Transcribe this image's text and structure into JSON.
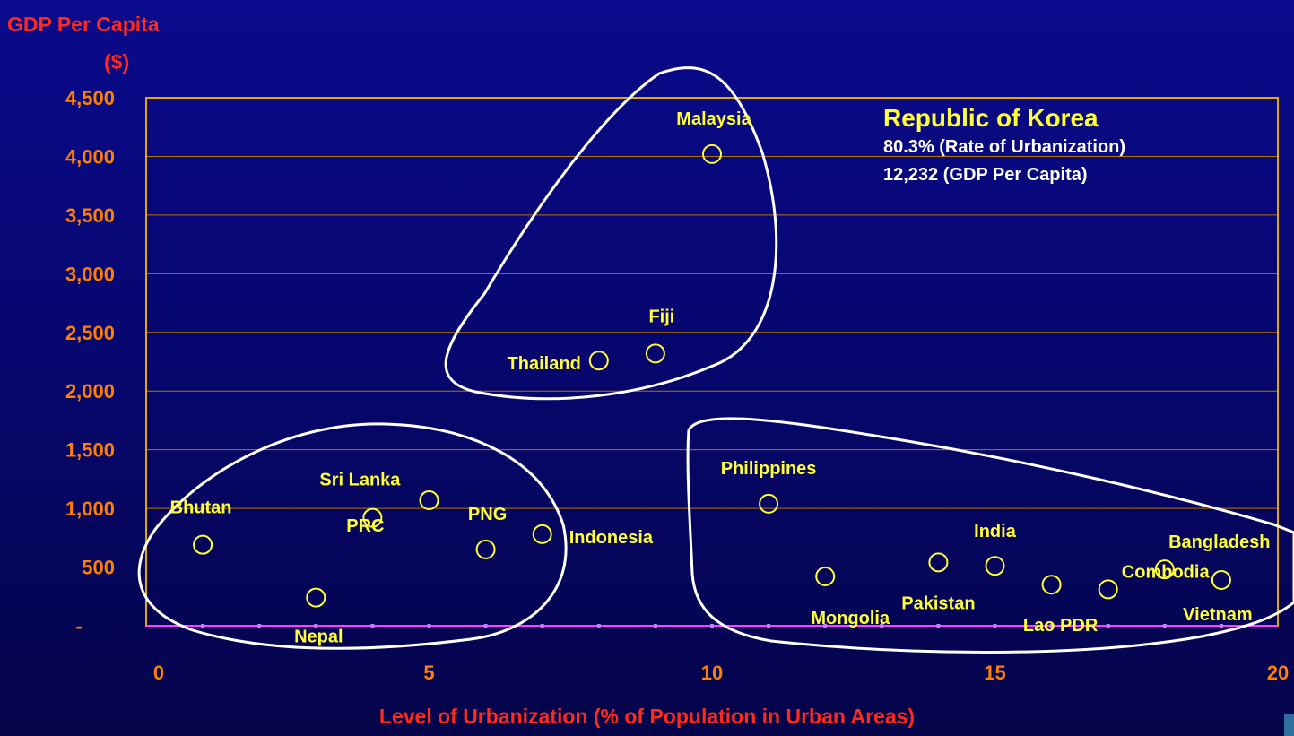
{
  "chart_data": {
    "type": "scatter",
    "ylabel_line1": "GDP Per Capita",
    "ylabel_line2": "($)",
    "xlabel": "Level of Urbanization (% of Population in Urban Areas)",
    "xlim": [
      0,
      20
    ],
    "ylim": [
      0,
      4500
    ],
    "x_ticks": [
      0,
      5,
      10,
      15,
      20
    ],
    "x_tick_labels": [
      "0",
      "5",
      "10",
      "15",
      "20"
    ],
    "y_ticks": [
      0,
      500,
      1000,
      1500,
      2000,
      2500,
      3000,
      3500,
      4000,
      4500
    ],
    "y_tick_labels": [
      "-",
      "500",
      "1,000",
      "1,500",
      "2,000",
      "2,500",
      "3,000",
      "3,500",
      "4,000",
      "4,500"
    ],
    "grid": true,
    "points": [
      {
        "label": "Bhutan",
        "x": 1,
        "y": 690
      },
      {
        "label": "Nepal",
        "x": 3,
        "y": 240
      },
      {
        "label": "Sri Lanka",
        "x": 4,
        "y": 920
      },
      {
        "label": "PRC",
        "x": 5,
        "y": 1070
      },
      {
        "label": "PNG",
        "x": 6,
        "y": 650
      },
      {
        "label": "Indonesia",
        "x": 7,
        "y": 780
      },
      {
        "label": "Thailand",
        "x": 8,
        "y": 2260
      },
      {
        "label": "Fiji",
        "x": 9,
        "y": 2320
      },
      {
        "label": "Malaysia",
        "x": 10,
        "y": 4020
      },
      {
        "label": "Philippines",
        "x": 11,
        "y": 1040
      },
      {
        "label": "Mongolia",
        "x": 12,
        "y": 420
      },
      {
        "label": "Pakistan",
        "x": 14,
        "y": 540
      },
      {
        "label": "India",
        "x": 15,
        "y": 510
      },
      {
        "label": "Lao PDR",
        "x": 16,
        "y": 350
      },
      {
        "label": "Combodia",
        "x": 17,
        "y": 310
      },
      {
        "label": "Bangladesh",
        "x": 18,
        "y": 480
      },
      {
        "label": "Vietnam",
        "x": 19,
        "y": 390
      }
    ],
    "annotation": {
      "title": "Republic of Korea",
      "line1": "80.3% (Rate of Urbanization)",
      "line2": "12,232 (GDP Per Capita)"
    },
    "colors": {
      "axis_labels": "#ff7f00",
      "titles": "#ff2a1a",
      "point_labels": "#ffff33",
      "markers": "#ffff33",
      "frame": "#e0a800",
      "grid": "#b07800",
      "baseline": "#ff40ff",
      "groups": "#ffffff"
    }
  }
}
